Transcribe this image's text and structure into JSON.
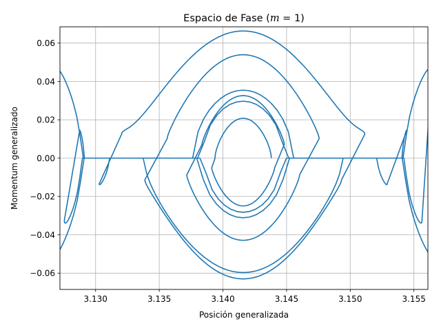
{
  "chart_data": {
    "type": "line",
    "title_prefix": "Espacio de Fase (",
    "title_math": "m",
    "title_suffix": " = 1)",
    "xlabel": "Posición generalizada",
    "ylabel": "Momentum generalizado",
    "xlim": [
      3.1272,
      3.1561
    ],
    "ylim": [
      -0.0685,
      0.0685
    ],
    "xticks": [
      3.13,
      3.135,
      3.14,
      3.145,
      3.15,
      3.155
    ],
    "xtick_labels": [
      "3.130",
      "3.135",
      "3.140",
      "3.145",
      "3.150",
      "3.155"
    ],
    "yticks": [
      -0.06,
      -0.04,
      -0.02,
      0.0,
      0.02,
      0.04,
      0.06
    ],
    "ytick_labels": [
      "−0.06",
      "−0.04",
      "−0.02",
      "0.00",
      "0.02",
      "0.04",
      "0.06"
    ],
    "grid": true,
    "line_color": "#1f77b4",
    "trajectory": {
      "center": 3.14159,
      "start": 3.1438,
      "amp_max": 0.0131,
      "amp_min": 0.0024,
      "p_scale": 0.0625,
      "loops": 11
    }
  }
}
